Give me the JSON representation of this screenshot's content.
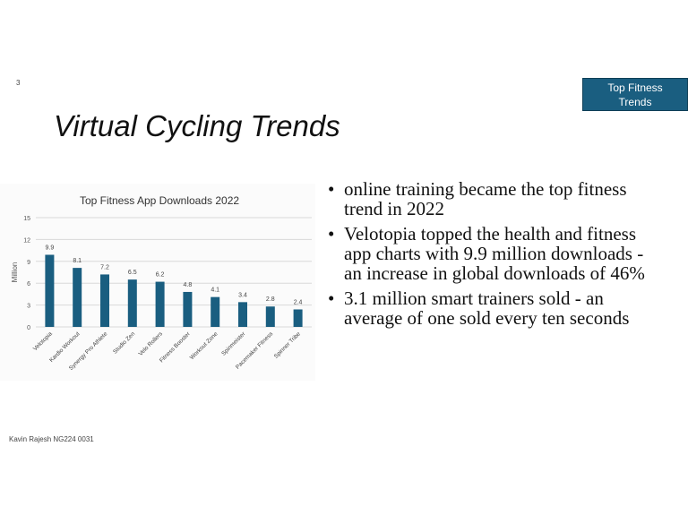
{
  "slide": {
    "number": "3",
    "title": "Virtual Cycling Trends",
    "badge": [
      "Top Fitness",
      "Trends"
    ],
    "bullets": [
      "online training became the top fitness trend in 2022",
      "Velotopia topped the health and fitness app charts with 9.9 million downloads - an increase in global downloads of 46%",
      "3.1 million smart trainers sold - an average of one sold every ten seconds"
    ],
    "bullet_glyph": "•",
    "footer": "Kavin Rajesh NG224 0031"
  },
  "colors": {
    "bar": "#1a5e80",
    "badge": "#1a5e80"
  },
  "chart_data": {
    "type": "bar",
    "title": "Top Fitness App Downloads 2022",
    "xlabel": "",
    "ylabel": "Million",
    "ylim": [
      0,
      15
    ],
    "yticks": [
      0,
      3,
      6,
      9,
      12,
      15
    ],
    "grid": true,
    "categories": [
      "Velotopia",
      "Kardio Workout",
      "Synergy Pro Athlete",
      "Studio Zen",
      "Velo Rollers",
      "Fitness Booster",
      "Workout Zone",
      "Spinmeister",
      "Pacemaker Fitness",
      "Spinner Tribe"
    ],
    "values": [
      9.9,
      8.1,
      7.2,
      6.5,
      6.2,
      4.8,
      4.1,
      3.4,
      2.8,
      2.4
    ],
    "data_labels": [
      "9.9",
      "8.1",
      "7.2",
      "6.5",
      "6.2",
      "4.8",
      "4.1",
      "3.4",
      "2.8",
      "2.4"
    ]
  }
}
